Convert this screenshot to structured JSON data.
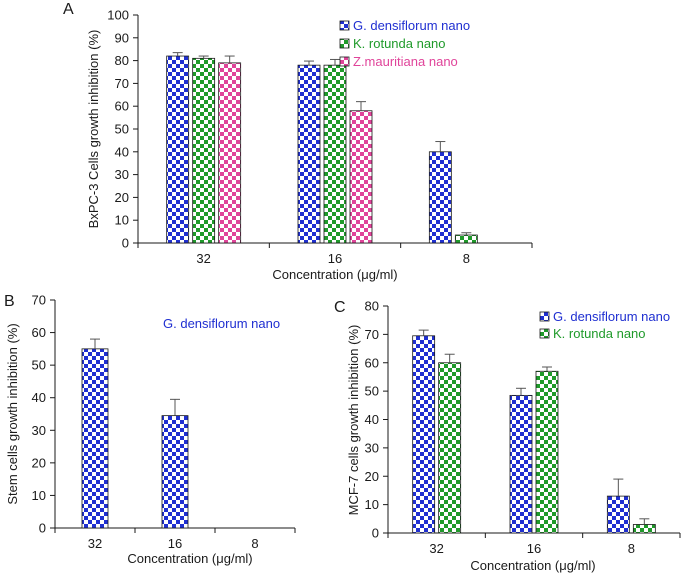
{
  "colors": {
    "blue": "#1f2fd1",
    "green": "#1f9a2a",
    "pink": "#e0449a",
    "axis": "#1a1a1a"
  },
  "chart_data": [
    {
      "panel": "A",
      "type": "bar",
      "categories": [
        "32",
        "16",
        "8"
      ],
      "xlabel": "Concentration (μg/ml)",
      "ylabel": "BxPC-3 Cells growth inhibition (%)",
      "ylim": [
        0,
        100
      ],
      "yticks": [
        0,
        10,
        20,
        30,
        40,
        50,
        60,
        70,
        80,
        90,
        100
      ],
      "legend": "top-right",
      "series": [
        {
          "name": "G. densiflorum nano",
          "color_key": "blue",
          "values": [
            82,
            78,
            40
          ],
          "errors": [
            1.5,
            1.8,
            4.5
          ]
        },
        {
          "name": "K. rotunda nano",
          "color_key": "green",
          "values": [
            81,
            78,
            3.5
          ],
          "errors": [
            1.0,
            2.5,
            1.0
          ]
        },
        {
          "name": "Z.mauritiana nano",
          "color_key": "pink",
          "values": [
            79,
            58,
            0
          ],
          "errors": [
            3.0,
            4.0,
            0
          ]
        }
      ]
    },
    {
      "panel": "B",
      "type": "bar",
      "categories": [
        "32",
        "16",
        "8"
      ],
      "xlabel": "Concentration (μg/ml)",
      "ylabel": "Stem cells growth inhibition (%)",
      "ylim": [
        0,
        70
      ],
      "yticks": [
        0,
        10,
        20,
        30,
        40,
        50,
        60,
        70
      ],
      "annotation": "G. densiflorum nano",
      "series": [
        {
          "name": "G. densiflorum nano",
          "color_key": "blue",
          "values": [
            55,
            34.5,
            0
          ],
          "errors": [
            3.0,
            5.0,
            0
          ]
        }
      ]
    },
    {
      "panel": "C",
      "type": "bar",
      "categories": [
        "32",
        "16",
        "8"
      ],
      "xlabel": "Concentration (μg/ml)",
      "ylabel": "MCF-7 cells growth inhibition (%)",
      "ylim": [
        0,
        80
      ],
      "yticks": [
        0,
        10,
        20,
        30,
        40,
        50,
        60,
        70,
        80
      ],
      "legend": "top-right",
      "series": [
        {
          "name": "G. densiflorum nano",
          "color_key": "blue",
          "values": [
            69.5,
            48.5,
            13
          ],
          "errors": [
            2.0,
            2.5,
            6.0
          ]
        },
        {
          "name": "K. rotunda nano",
          "color_key": "green",
          "values": [
            60,
            57,
            3
          ],
          "errors": [
            3.0,
            1.5,
            2.0
          ]
        }
      ]
    }
  ]
}
